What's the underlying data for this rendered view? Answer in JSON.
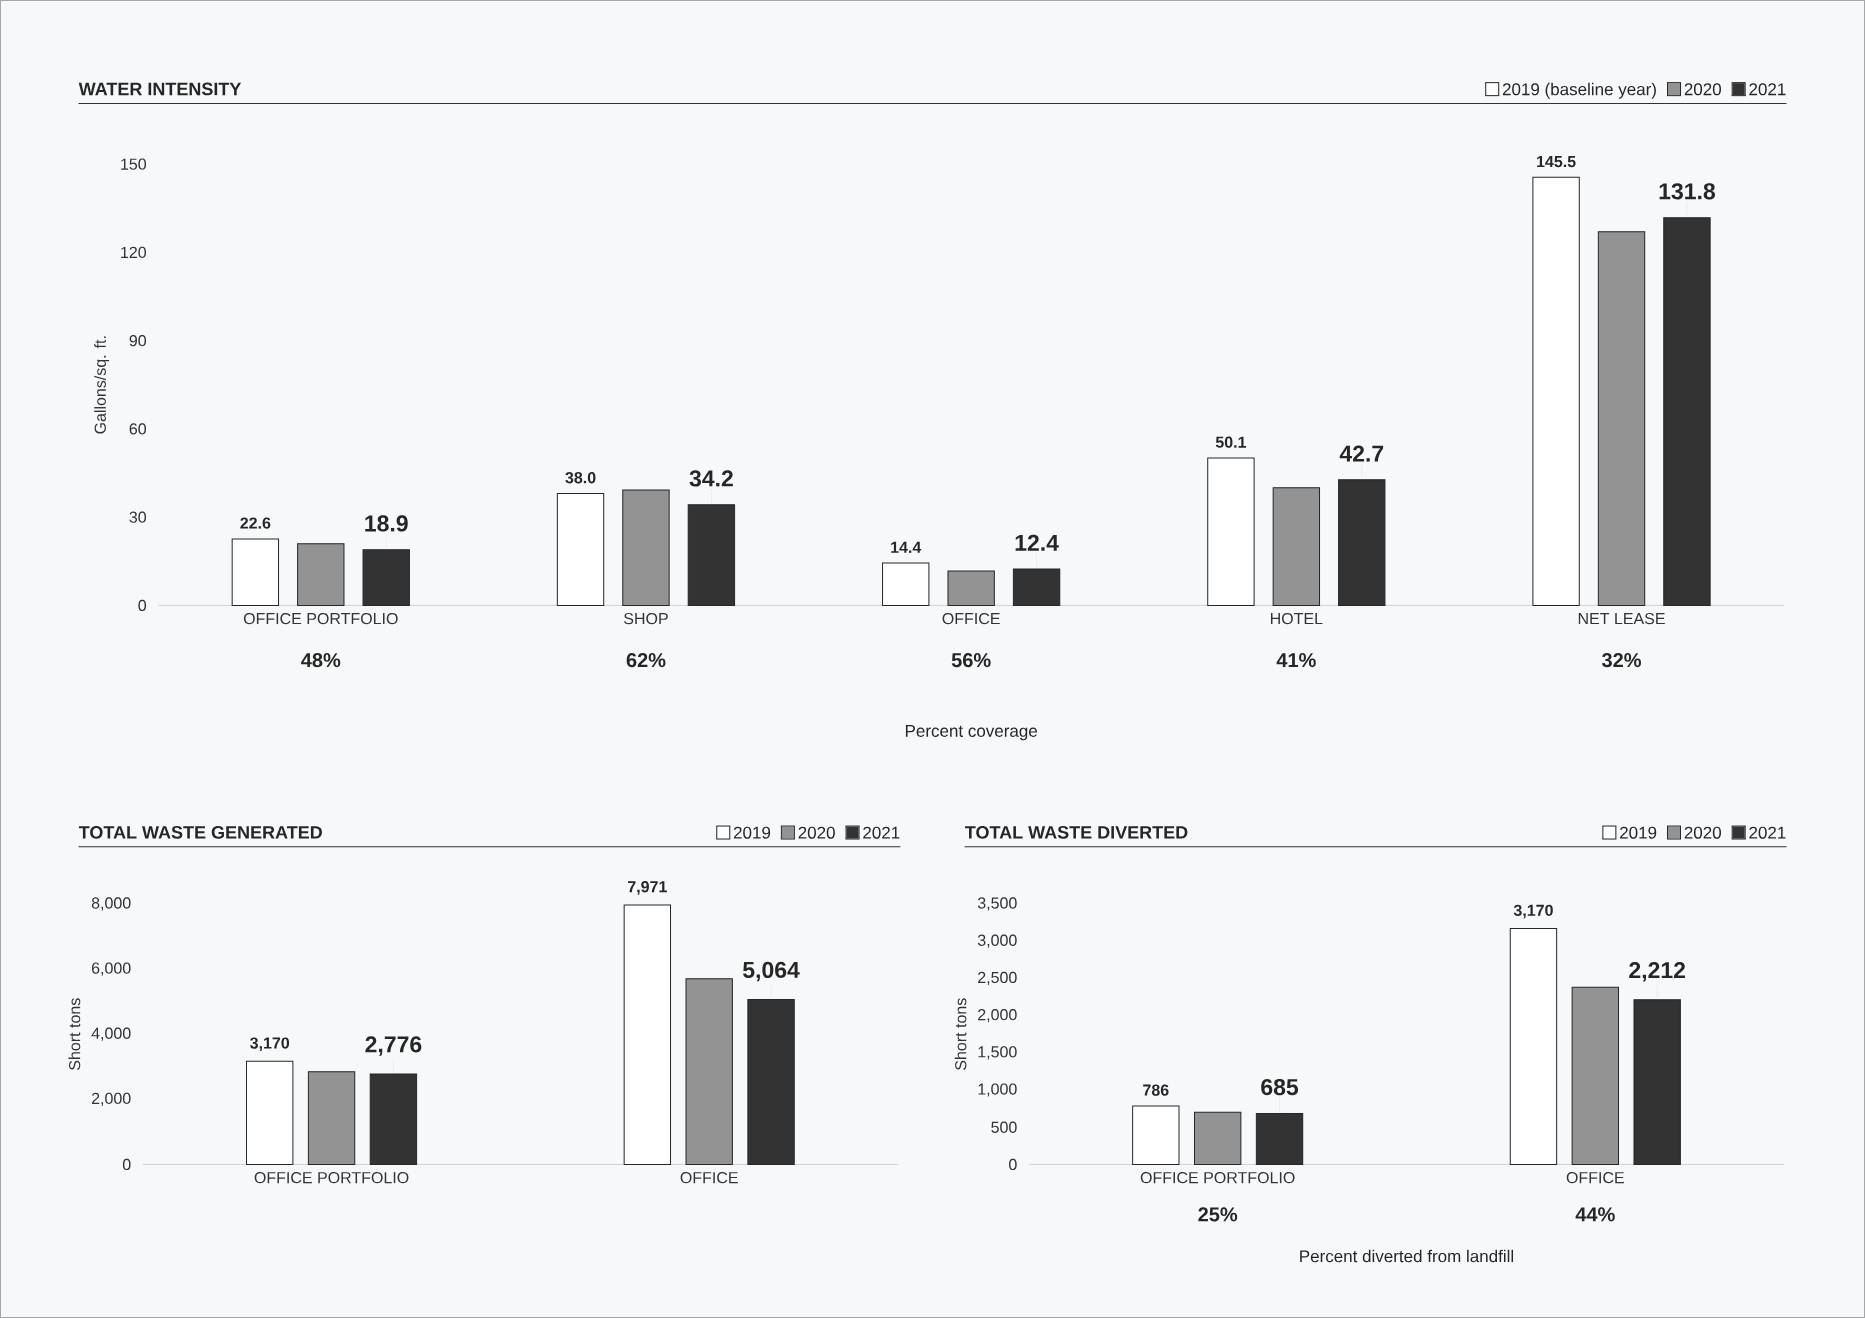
{
  "chart_data": [
    {
      "type": "bar",
      "title": "WATER INTENSITY",
      "ylabel": "Gallons/sq. ft.",
      "xlabel": "Percent coverage",
      "legend": "top right",
      "categories": [
        "OFFICE PORTFOLIO",
        "SHOP",
        "OFFICE",
        "HOTEL",
        "NET LEASE"
      ],
      "ylim": [
        0,
        150
      ],
      "yticks": [
        0,
        30,
        60,
        90,
        120,
        150
      ],
      "series": [
        {
          "name": "2019 (baseline year)",
          "color": "#ffffff",
          "values": [
            22.6,
            38.0,
            14.4,
            50.1,
            145.5
          ],
          "value_labels": [
            "22.6",
            "38.0",
            "14.4",
            "50.1",
            "145.5"
          ]
        },
        {
          "name": "2020",
          "color": "#939393",
          "values": [
            21.0,
            39.2,
            11.7,
            40.0,
            127.0
          ]
        },
        {
          "name": "2021",
          "color": "#333333",
          "values": [
            18.9,
            34.2,
            12.4,
            42.7,
            131.8
          ],
          "value_labels": [
            "18.9",
            "34.2",
            "12.4",
            "42.7",
            "131.8"
          ]
        }
      ],
      "annotations": [
        "48%",
        "62%",
        "56%",
        "41%",
        "32%"
      ]
    },
    {
      "type": "bar",
      "title": "TOTAL WASTE GENERATED",
      "ylabel": "Short tons",
      "legend": "top right",
      "categories": [
        "OFFICE PORTFOLIO",
        "OFFICE"
      ],
      "ylim": [
        0,
        8000
      ],
      "yticks": [
        0,
        {
          "value": 2000,
          "label": "2,000"
        },
        {
          "value": 4000,
          "label": "4,000"
        },
        {
          "value": 6000,
          "label": "6,000"
        },
        {
          "value": 8000,
          "label": "8,000"
        }
      ],
      "series": [
        {
          "name": "2019",
          "color": "#ffffff",
          "values": [
            3170,
            7971
          ],
          "value_labels": [
            "3,170",
            "7,971"
          ]
        },
        {
          "name": "2020",
          "color": "#939393",
          "values": [
            2850,
            5700
          ]
        },
        {
          "name": "2021",
          "color": "#333333",
          "values": [
            2776,
            5064
          ],
          "value_labels": [
            "2,776",
            "5,064"
          ]
        }
      ]
    },
    {
      "type": "bar",
      "title": "TOTAL WASTE DIVERTED",
      "ylabel": "Short tons",
      "xlabel": "Percent diverted from landfill",
      "legend": "top right",
      "categories": [
        "OFFICE PORTFOLIO",
        "OFFICE"
      ],
      "ylim": [
        0,
        3500
      ],
      "yticks": [
        0,
        500,
        {
          "value": 1000,
          "label": "1,000"
        },
        {
          "value": 1500,
          "label": "1,500"
        },
        {
          "value": 2000,
          "label": "2,000"
        },
        {
          "value": 2500,
          "label": "2,500"
        },
        {
          "value": 3000,
          "label": "3,000"
        },
        {
          "value": 3500,
          "label": "3,500"
        }
      ],
      "series": [
        {
          "name": "2019",
          "color": "#ffffff",
          "values": [
            786,
            3170
          ],
          "value_labels": [
            "786",
            "3,170"
          ]
        },
        {
          "name": "2020",
          "color": "#939393",
          "values": [
            700,
            2380
          ]
        },
        {
          "name": "2021",
          "color": "#333333",
          "values": [
            685,
            2212
          ],
          "value_labels": [
            "685",
            "2,212"
          ]
        }
      ],
      "annotations": [
        "25%",
        "44%"
      ]
    }
  ]
}
